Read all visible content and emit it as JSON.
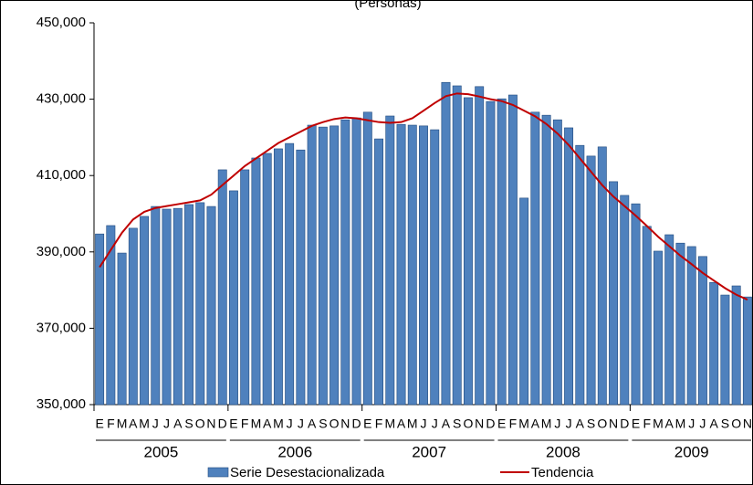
{
  "chart_data": {
    "type": "bar_line",
    "title": "(Personas)",
    "categories": [
      "E",
      "F",
      "M",
      "A",
      "M",
      "J",
      "J",
      "A",
      "S",
      "O",
      "N",
      "D",
      "E",
      "F",
      "M",
      "A",
      "M",
      "J",
      "J",
      "A",
      "S",
      "O",
      "N",
      "D",
      "E",
      "F",
      "M",
      "A",
      "M",
      "J",
      "J",
      "A",
      "S",
      "O",
      "N",
      "D",
      "E",
      "F",
      "M",
      "A",
      "M",
      "J",
      "J",
      "A",
      "S",
      "O",
      "N",
      "D",
      "E",
      "F",
      "M",
      "A",
      "M",
      "J",
      "J",
      "A",
      "S",
      "O",
      "N"
    ],
    "years": [
      "2005",
      "2006",
      "2007",
      "2008",
      "2009"
    ],
    "series": [
      {
        "name": "Serie Desestacionalizada",
        "type": "bar",
        "color": "#4f81bd",
        "values": [
          394700,
          396900,
          389700,
          396200,
          399300,
          401900,
          401200,
          401400,
          402400,
          402900,
          401900,
          411500,
          406000,
          411500,
          414600,
          415800,
          417000,
          418400,
          416700,
          423200,
          422700,
          423000,
          424600,
          425100,
          426600,
          419600,
          425600,
          423400,
          423200,
          423000,
          422000,
          434400,
          433500,
          430400,
          433300,
          429400,
          430100,
          431100,
          404100,
          426600,
          425800,
          424600,
          422500,
          417900,
          415100,
          417500,
          408400,
          404800,
          402600,
          396700,
          390200,
          394500,
          392300,
          391400,
          388800,
          382000,
          378700,
          381100,
          378200
        ]
      },
      {
        "name": "Tendencia",
        "type": "line",
        "color": "#c00000",
        "values": [
          386000,
          390500,
          395000,
          398500,
          400500,
          401500,
          402000,
          402500,
          403000,
          403500,
          405000,
          407500,
          410000,
          412500,
          414500,
          416500,
          418500,
          420000,
          421500,
          423000,
          424000,
          424800,
          425200,
          425000,
          424500,
          424000,
          423800,
          424000,
          425000,
          427000,
          429000,
          430800,
          431500,
          431300,
          430700,
          430000,
          429500,
          428500,
          427000,
          425500,
          423500,
          421000,
          418000,
          414500,
          411000,
          407500,
          404500,
          402000,
          399500,
          396800,
          394000,
          391500,
          389000,
          386800,
          384500,
          382500,
          380500,
          378800,
          377500
        ]
      }
    ],
    "ylim": [
      350000,
      450000
    ],
    "yticks": [
      {
        "value": 350000,
        "label": "350,000"
      },
      {
        "value": 370000,
        "label": "370,000"
      },
      {
        "value": 390000,
        "label": "390,000"
      },
      {
        "value": 410000,
        "label": "410,000"
      },
      {
        "value": 430000,
        "label": "430,000"
      },
      {
        "value": 450000,
        "label": "450,000"
      }
    ]
  }
}
